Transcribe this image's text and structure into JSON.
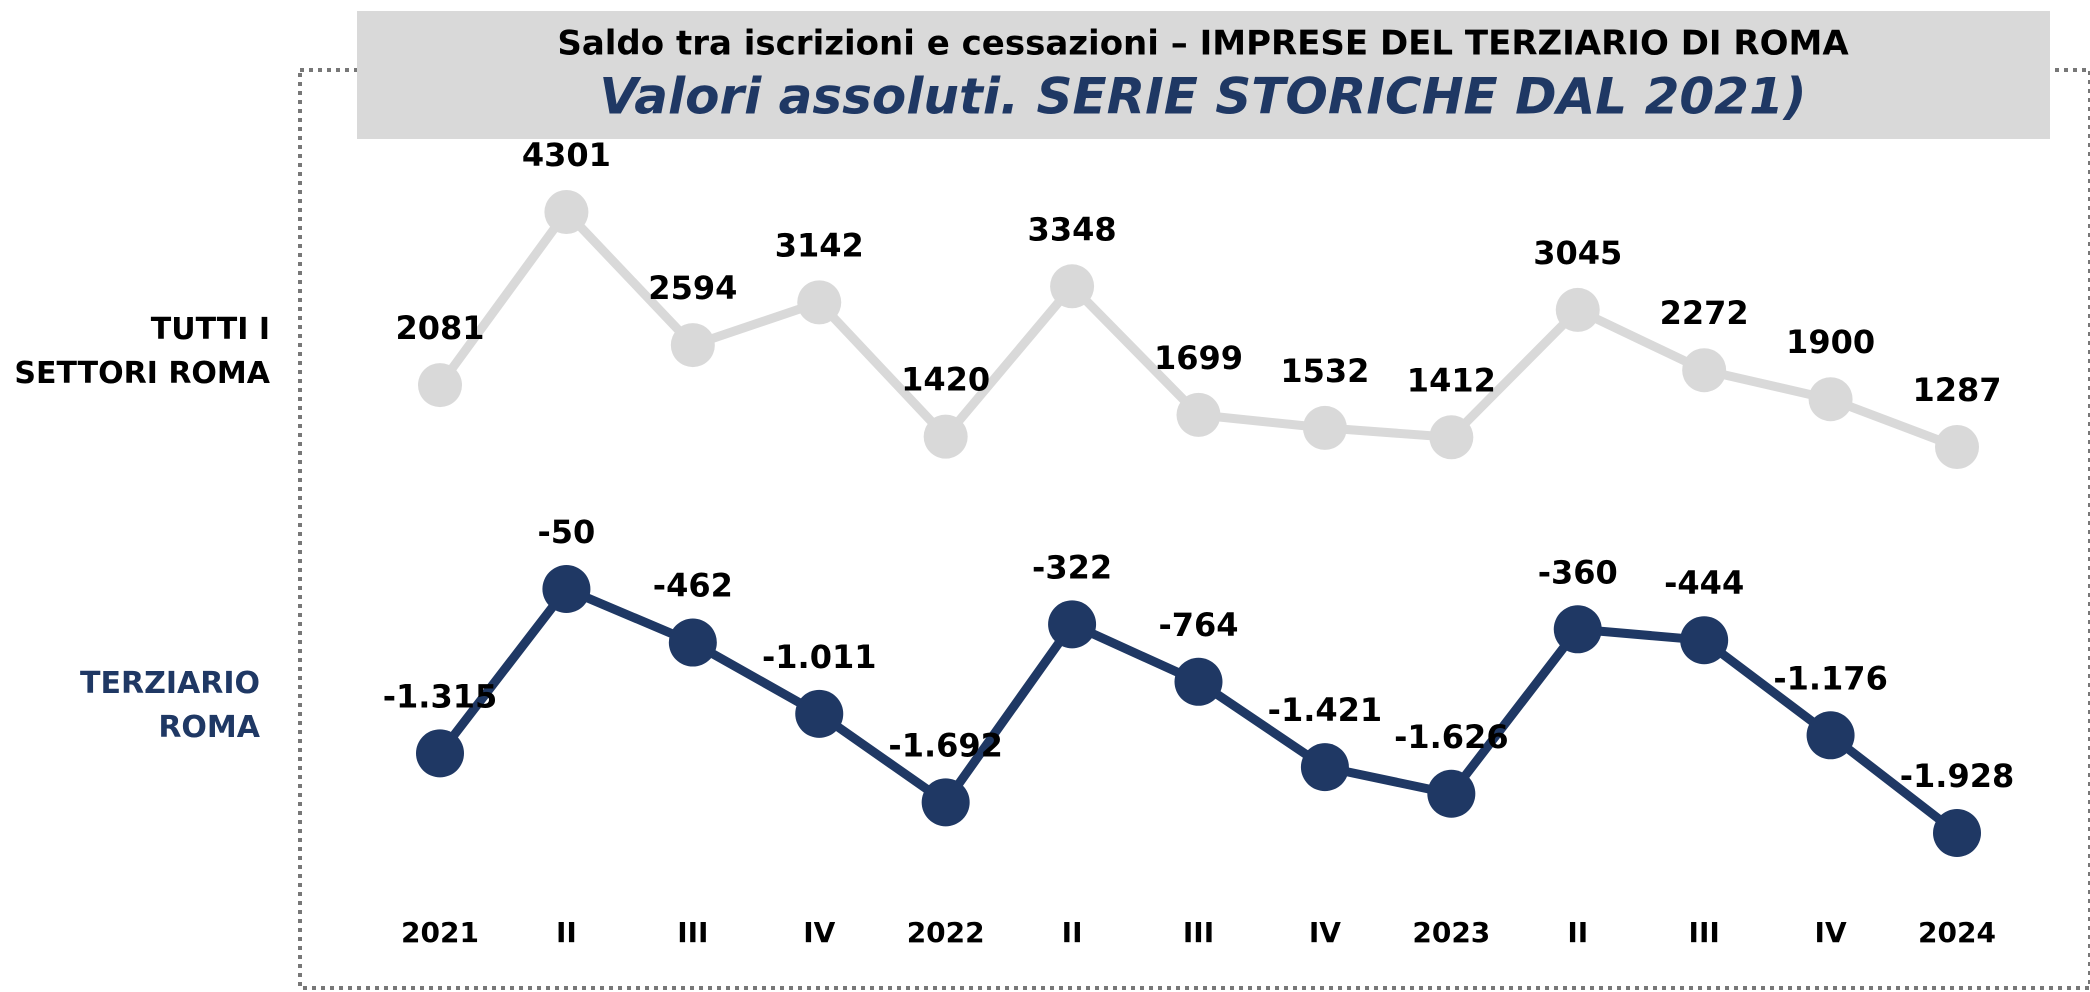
{
  "chart_data": {
    "type": "line",
    "title": "Saldo tra iscrizioni e cessazioni – IMPRESE DEL TERZIARIO DI ROMA",
    "subtitle": "Valori assoluti. SERIE STORICHE DAL 2021)",
    "categories": [
      "2021",
      "II",
      "III",
      "IV",
      "2022",
      "II",
      "III",
      "IV",
      "2023",
      "II",
      "III",
      "IV",
      "2024"
    ],
    "series": [
      {
        "name": "TUTTI I SETTORI ROMA",
        "color": "#d9d9d9",
        "values": [
          2081,
          4301,
          2594,
          3142,
          1420,
          3348,
          1699,
          1532,
          1412,
          3045,
          2272,
          1900,
          1287
        ]
      },
      {
        "name": "TERZIARIO ROMA",
        "color": "#1f3864",
        "values": [
          -1315,
          -50,
          -462,
          -1011,
          -1692,
          -322,
          -764,
          -1421,
          -1626,
          -360,
          -444,
          -1176,
          -1928
        ],
        "value_labels": [
          "-1.315",
          "-50",
          "-462",
          "-1.011",
          "-1.692",
          "-322",
          "-764",
          "-1.421",
          "-1.626",
          "-360",
          "-444",
          "-1.176",
          "-1.928"
        ]
      }
    ]
  }
}
